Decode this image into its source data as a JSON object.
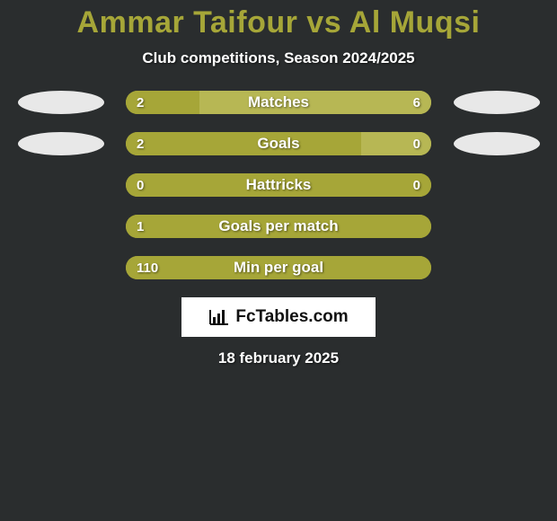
{
  "title_text": "Ammar Taifour vs Al Muqsi",
  "title_color": "#a6a638",
  "subtitle_text": "Club competitions, Season 2024/2025",
  "background_color": "#2a2d2e",
  "player_left": {
    "bar_color": "#a6a638",
    "badge_color": "#e8e8e8"
  },
  "player_right": {
    "bar_color": "#b7b754",
    "badge_color": "#e8e8e8"
  },
  "bar_track_color": "#a6a638",
  "stats": [
    {
      "label": "Matches",
      "left_value": "2",
      "right_value": "6",
      "left_pct": 24,
      "right_pct": 76,
      "show_badges": true
    },
    {
      "label": "Goals",
      "left_value": "2",
      "right_value": "0",
      "left_pct": 77,
      "right_pct": 23,
      "show_badges": true
    },
    {
      "label": "Hattricks",
      "left_value": "0",
      "right_value": "0",
      "left_pct": 100,
      "right_pct": 0,
      "show_badges": false
    },
    {
      "label": "Goals per match",
      "left_value": "1",
      "right_value": "",
      "left_pct": 100,
      "right_pct": 0,
      "show_badges": false
    },
    {
      "label": "Min per goal",
      "left_value": "110",
      "right_value": "",
      "left_pct": 100,
      "right_pct": 0,
      "show_badges": false
    }
  ],
  "logo": {
    "text": "FcTables.com"
  },
  "date_text": "18 february 2025"
}
